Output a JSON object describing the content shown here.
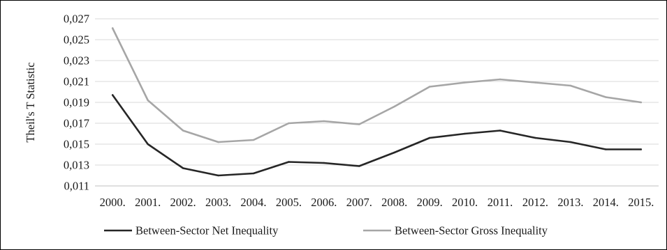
{
  "chart_data": {
    "type": "line",
    "title": "",
    "xlabel": "",
    "ylabel": "Theil's T Statistic",
    "categories": [
      "2000.",
      "2001.",
      "2002.",
      "2003.",
      "2004.",
      "2005.",
      "2006.",
      "2007.",
      "2008.",
      "2009.",
      "2010.",
      "2011.",
      "2012.",
      "2013.",
      "2014.",
      "2015."
    ],
    "y_ticks": [
      "0,011",
      "0,013",
      "0,015",
      "0,017",
      "0,019",
      "0,021",
      "0,023",
      "0,025",
      "0,027"
    ],
    "ylim": [
      0.011,
      0.027
    ],
    "grid": "horizontal",
    "legend_position": "bottom",
    "series": [
      {
        "name": "Between-Sector Net Inequality",
        "color": "#262626",
        "values": [
          0.0197,
          0.015,
          0.0127,
          0.012,
          0.0122,
          0.0133,
          0.0132,
          0.0129,
          0.0142,
          0.0156,
          0.016,
          0.0163,
          0.0156,
          0.0152,
          0.0145,
          0.0145
        ]
      },
      {
        "name": "Between-Sector Gross Inequality",
        "color": "#a6a6a6",
        "values": [
          0.0261,
          0.0192,
          0.0163,
          0.0152,
          0.0154,
          0.017,
          0.0172,
          0.0169,
          0.0186,
          0.0205,
          0.0209,
          0.0212,
          0.0209,
          0.0206,
          0.0195,
          0.019
        ]
      }
    ]
  }
}
